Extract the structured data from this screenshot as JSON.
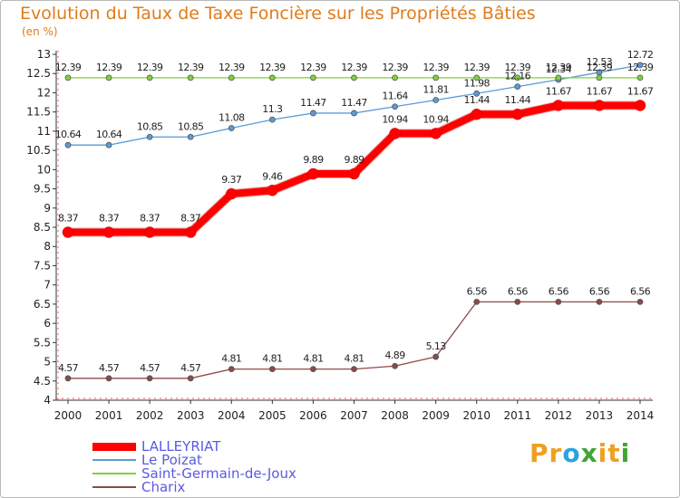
{
  "page": {
    "title": "Evolution du Taux de Taxe Foncière sur les Propriétés Bâties",
    "unit": "(en %)"
  },
  "brand": {
    "text": "Proxiti",
    "letters": [
      "P",
      "r",
      "o",
      "x",
      "i",
      "t",
      "i"
    ],
    "colors": [
      "#f0a020",
      "#f0a020",
      "#2aa3e0",
      "#3fa535",
      "#f0a020",
      "#f0a020",
      "#3fa535"
    ]
  },
  "chart_data": {
    "type": "line",
    "title": "Evolution du Taux de Taxe Foncière sur les Propriétés Bâties",
    "ylabel": "(en %)",
    "xlabel": "",
    "ylim": [
      4,
      13
    ],
    "yticks": [
      "4",
      "4.5",
      "5",
      "5.5",
      "6",
      "6.5",
      "7",
      "7.5",
      "8",
      "8.5",
      "9",
      "9.5",
      "10",
      "10.5",
      "11",
      "11.5",
      "12",
      "12.5",
      "13"
    ],
    "categories": [
      "2000",
      "2001",
      "2002",
      "2003",
      "2004",
      "2005",
      "2006",
      "2007",
      "2008",
      "2009",
      "2010",
      "2011",
      "2012",
      "2013",
      "2014"
    ],
    "grid": false,
    "legend_position": "bottom-left",
    "series": [
      {
        "name": "LALLEYRIAT",
        "color": "#ff0000",
        "emphasis": true,
        "values": [
          8.37,
          8.37,
          8.37,
          8.37,
          9.37,
          9.46,
          9.89,
          9.89,
          10.94,
          10.94,
          11.44,
          11.44,
          11.67,
          11.67,
          11.67
        ],
        "labels": [
          "8.37",
          "8.37",
          "8.37",
          "8.37",
          "9.37",
          "9.46",
          "9.89",
          "9.89",
          "10.94",
          "10.94",
          "11.44",
          "11.44",
          "11.67",
          "11.67",
          "11.67"
        ]
      },
      {
        "name": "Le Poizat",
        "color": "#5b9bd5",
        "emphasis": false,
        "values": [
          10.64,
          10.64,
          10.85,
          10.85,
          11.08,
          11.3,
          11.47,
          11.47,
          11.64,
          11.81,
          11.98,
          12.16,
          12.34,
          12.53,
          12.72
        ],
        "labels": [
          "10.64",
          "10.64",
          "10.85",
          "10.85",
          "11.08",
          "11.3",
          "11.47",
          "11.47",
          "11.64",
          "11.81",
          "11.98",
          "12.16",
          "12.34",
          "12.53",
          "12.72"
        ]
      },
      {
        "name": "Saint-Germain-de-Joux",
        "color": "#7fd13b",
        "emphasis": false,
        "values": [
          12.39,
          12.39,
          12.39,
          12.39,
          12.39,
          12.39,
          12.39,
          12.39,
          12.39,
          12.39,
          12.39,
          12.39,
          12.39,
          12.39,
          12.39
        ],
        "labels": [
          "12.39",
          "12.39",
          "12.39",
          "12.39",
          "12.39",
          "12.39",
          "12.39",
          "12.39",
          "12.39",
          "12.39",
          "12.39",
          "12.39",
          "12.39",
          "12.39",
          "12.39"
        ]
      },
      {
        "name": "Charix",
        "color": "#8b4a4a",
        "emphasis": false,
        "values": [
          4.57,
          4.57,
          4.57,
          4.57,
          4.81,
          4.81,
          4.81,
          4.81,
          4.89,
          5.13,
          6.56,
          6.56,
          6.56,
          6.56,
          6.56
        ],
        "labels": [
          "4.57",
          "4.57",
          "4.57",
          "4.57",
          "4.81",
          "4.81",
          "4.81",
          "4.81",
          "4.89",
          "5.13",
          "6.56",
          "6.56",
          "6.56",
          "6.56",
          "6.56"
        ]
      }
    ]
  }
}
